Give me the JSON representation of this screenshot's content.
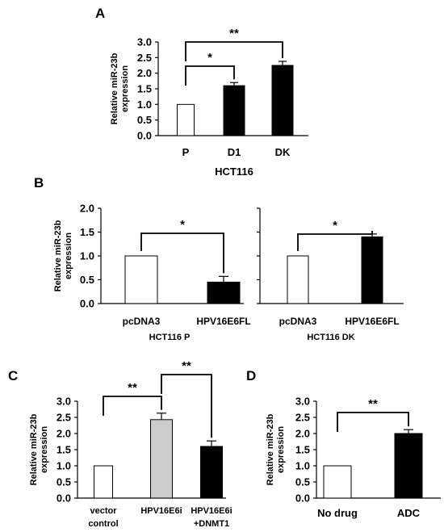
{
  "chart_data": [
    {
      "panel": "A",
      "type": "bar",
      "ylabel": "Relative miR-23b expression",
      "ylim": [
        0,
        3.0
      ],
      "yticks": [
        "0.0",
        "0.5",
        "1.0",
        "1.5",
        "2.0",
        "2.5",
        "3.0"
      ],
      "groups": [
        {
          "xlabel": "HCT116",
          "categories": [
            "P",
            "D1",
            "DK"
          ],
          "values": [
            1.0,
            1.6,
            2.25
          ],
          "errors": [
            0,
            0.1,
            0.13
          ],
          "colors": [
            "#ffffff",
            "#000000",
            "#000000"
          ],
          "significance": [
            {
              "from": 0,
              "to": 1,
              "label": "*"
            },
            {
              "from": 0,
              "to": 2,
              "label": "**"
            }
          ]
        }
      ]
    },
    {
      "panel": "B",
      "type": "bar",
      "ylabel": "Relative miR-23b expression",
      "ylim": [
        0,
        2.0
      ],
      "yticks": [
        "0.0",
        "0.5",
        "1.0",
        "1.5",
        "2.0"
      ],
      "groups": [
        {
          "xlabel": "HCT116 P",
          "categories": [
            "pcDNA3",
            "HPV16E6FL"
          ],
          "values": [
            1.0,
            0.45
          ],
          "errors": [
            0,
            0.12
          ],
          "colors": [
            "#ffffff",
            "#000000"
          ],
          "significance": [
            {
              "from": 0,
              "to": 1,
              "label": "*"
            }
          ]
        },
        {
          "xlabel": "HCT116 DK",
          "categories": [
            "pcDNA3",
            "HPV16E6FL"
          ],
          "values": [
            1.0,
            1.4
          ],
          "errors": [
            0,
            0.06
          ],
          "colors": [
            "#ffffff",
            "#000000"
          ],
          "significance": [
            {
              "from": 0,
              "to": 1,
              "label": "*"
            }
          ]
        }
      ]
    },
    {
      "panel": "C",
      "type": "bar",
      "ylabel": "Relative miR-23b expression",
      "ylim": [
        0,
        3.0
      ],
      "yticks": [
        "0.0",
        "0.5",
        "1.0",
        "1.5",
        "2.0",
        "2.5",
        "3.0"
      ],
      "groups": [
        {
          "xlabel": "",
          "categories": [
            [
              "vector",
              "control"
            ],
            [
              "HPV16E6i"
            ],
            [
              "HPV16E6i",
              "+DNMT1"
            ]
          ],
          "values": [
            1.0,
            2.43,
            1.6
          ],
          "errors": [
            0,
            0.2,
            0.17
          ],
          "colors": [
            "#ffffff",
            "#cccccc",
            "#000000"
          ],
          "significance": [
            {
              "from": 0,
              "to": 1,
              "label": "**"
            },
            {
              "from": 1,
              "to": 2,
              "label": "**"
            }
          ]
        }
      ]
    },
    {
      "panel": "D",
      "type": "bar",
      "ylabel": "Relative miR-23b expression",
      "ylim": [
        0,
        3.0
      ],
      "yticks": [
        "0.0",
        "0.5",
        "1.0",
        "1.5",
        "2.0",
        "2.5",
        "3.0"
      ],
      "groups": [
        {
          "xlabel": "",
          "categories": [
            [
              "No drug"
            ],
            [
              "ADC"
            ]
          ],
          "values": [
            1.0,
            2.0
          ],
          "errors": [
            0,
            0.12
          ],
          "colors": [
            "#ffffff",
            "#000000"
          ],
          "significance": [
            {
              "from": 0,
              "to": 1,
              "label": "**"
            }
          ]
        }
      ]
    }
  ]
}
